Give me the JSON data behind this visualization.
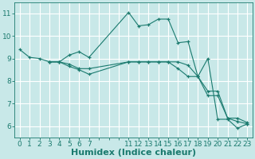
{
  "line_color": "#1a7a6e",
  "bg_color": "#c8e8e8",
  "grid_color": "#ffffff",
  "xlabel": "Humidex (Indice chaleur)",
  "xlabel_fontsize": 8,
  "tick_fontsize": 6.5,
  "ylim": [
    5.5,
    11.5
  ],
  "yticks": [
    6,
    7,
    8,
    9,
    10,
    11
  ],
  "xticks": [
    0,
    1,
    2,
    3,
    4,
    5,
    6,
    7,
    8,
    9,
    10,
    11,
    12,
    13,
    14,
    15,
    16,
    17,
    18,
    19,
    20,
    21,
    22,
    23
  ],
  "xtick_labels": [
    "0",
    "1",
    "2",
    "3",
    "4",
    "5",
    "6",
    "7",
    "",
    "",
    "",
    "11",
    "12",
    "13",
    "14",
    "15",
    "16",
    "17",
    "18",
    "19",
    "20",
    "21",
    "22",
    "23"
  ],
  "lines": [
    {
      "x": [
        0,
        1,
        2,
        3,
        4,
        5,
        6,
        7,
        11,
        12,
        13,
        14,
        15,
        16,
        17,
        18,
        19,
        20,
        21,
        22,
        23
      ],
      "y": [
        9.4,
        9.05,
        9.0,
        8.85,
        8.85,
        9.15,
        9.3,
        9.05,
        11.05,
        10.45,
        10.5,
        10.75,
        10.75,
        9.7,
        9.75,
        8.2,
        9.0,
        6.3,
        6.3,
        5.9,
        6.1
      ]
    },
    {
      "x": [
        3,
        4,
        5,
        6,
        7,
        11,
        12,
        13,
        14,
        15,
        16,
        17,
        18,
        19,
        20,
        21,
        22,
        23
      ],
      "y": [
        8.85,
        8.85,
        8.75,
        8.55,
        8.55,
        8.85,
        8.85,
        8.85,
        8.85,
        8.85,
        8.85,
        8.7,
        8.2,
        7.55,
        7.55,
        6.35,
        6.35,
        6.15
      ]
    },
    {
      "x": [
        3,
        4,
        5,
        6,
        7,
        11,
        12,
        13,
        14,
        15,
        16,
        17,
        18,
        19,
        20,
        21,
        22,
        23
      ],
      "y": [
        8.85,
        8.85,
        8.65,
        8.5,
        8.3,
        8.85,
        8.85,
        8.85,
        8.85,
        8.85,
        8.55,
        8.2,
        8.2,
        7.35,
        7.35,
        6.35,
        6.2,
        6.1
      ]
    }
  ]
}
